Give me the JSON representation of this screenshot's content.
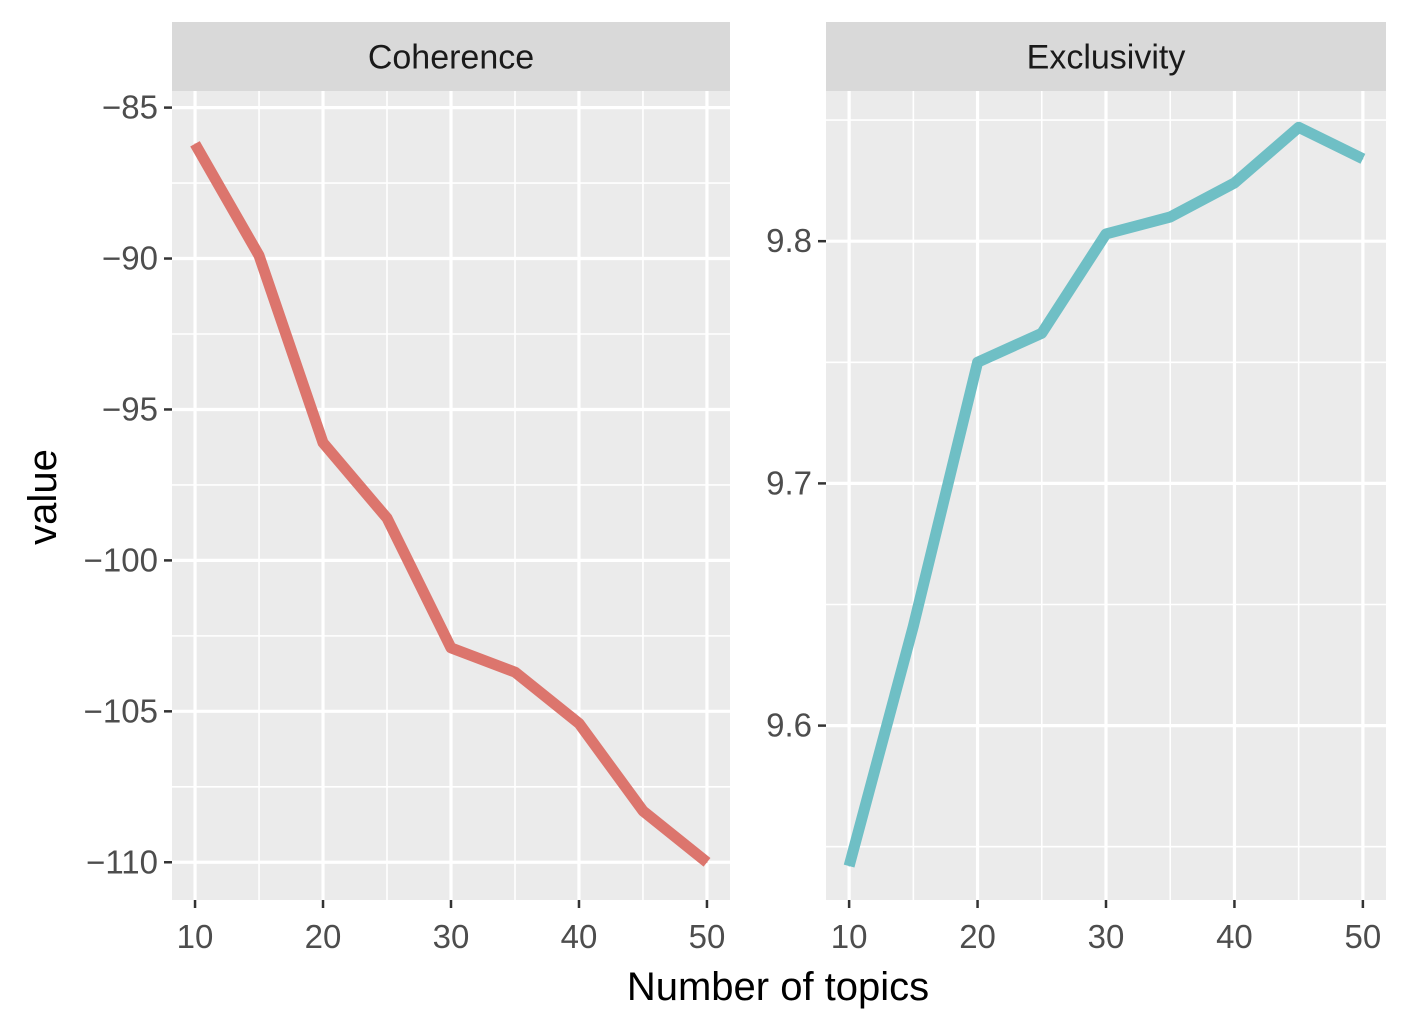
{
  "chart_data": [
    {
      "type": "line",
      "title": "Coherence",
      "x": [
        10,
        15,
        20,
        25,
        30,
        35,
        40,
        45,
        50
      ],
      "values": [
        -86.2,
        -89.9,
        -96.1,
        -98.6,
        -102.9,
        -103.7,
        -105.4,
        -108.3,
        -110.0
      ],
      "xlim": [
        8.2,
        51.8
      ],
      "ylim": [
        -111.25,
        -84.45
      ],
      "x_major_ticks": [
        10,
        20,
        30,
        40,
        50
      ],
      "x_tick_labels": [
        "10",
        "20",
        "30",
        "40",
        "50"
      ],
      "y_major_ticks": [
        -85,
        -90,
        -95,
        -100,
        -105,
        -110
      ],
      "y_tick_labels": [
        "−85",
        "−90",
        "−95",
        "−100",
        "−105",
        "−110"
      ],
      "color": "#DC756D"
    },
    {
      "type": "line",
      "title": "Exclusivity",
      "x": [
        10,
        15,
        20,
        25,
        30,
        35,
        40,
        45,
        50
      ],
      "values": [
        9.542,
        9.641,
        9.75,
        9.762,
        9.803,
        9.81,
        9.824,
        9.847,
        9.834
      ],
      "xlim": [
        8.2,
        51.8
      ],
      "ylim": [
        9.528,
        9.862
      ],
      "x_major_ticks": [
        10,
        20,
        30,
        40,
        50
      ],
      "x_tick_labels": [
        "10",
        "20",
        "30",
        "40",
        "50"
      ],
      "y_major_ticks": [
        9.6,
        9.7,
        9.8
      ],
      "y_tick_labels": [
        "9.6",
        "9.7",
        "9.8"
      ],
      "color": "#6FBFC5"
    }
  ],
  "axes": {
    "xlabel": "Number of topics",
    "ylabel": "value"
  },
  "theme": {
    "panel_background": "#EBEBEB",
    "strip_background": "#D9D9D9",
    "grid_color": "#FFFFFF",
    "tick_color": "#333333"
  }
}
